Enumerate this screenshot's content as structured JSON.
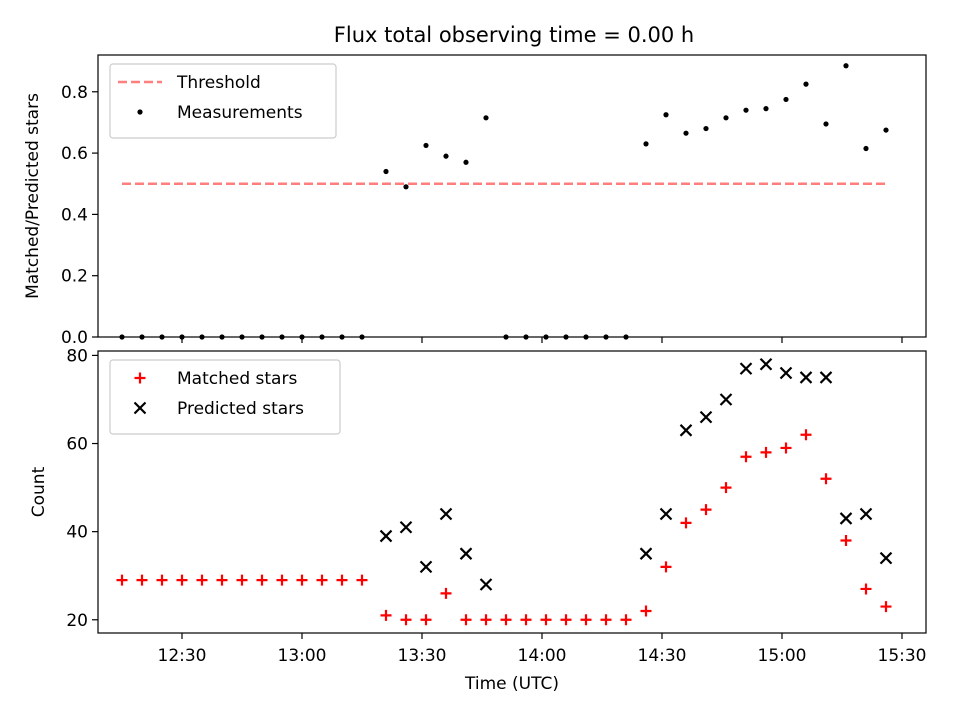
{
  "title": "Flux total observing time = 0.00 h",
  "colors": {
    "threshold": "#ff7f7f",
    "measurements": "#000000",
    "matched": "#ff0000",
    "predicted": "#000000"
  },
  "chart_data": [
    {
      "type": "scatter",
      "title": "Flux total observing time = 0.00 h",
      "xlabel": "",
      "ylabel": "Matched/Predicted stars",
      "xlim": [
        "12:09",
        "15:36"
      ],
      "ylim": [
        0,
        0.92
      ],
      "yticks": [
        0.0,
        0.2,
        0.4,
        0.6,
        0.8
      ],
      "ytick_labels": [
        "0.0",
        "0.2",
        "0.4",
        "0.6",
        "0.8"
      ],
      "legend": "top-left",
      "threshold": {
        "name": "Threshold",
        "value": 0.5,
        "x": [
          "12:15",
          "15:26"
        ]
      },
      "series": [
        {
          "name": "Measurements",
          "x": [
            "12:15",
            "12:20",
            "12:25",
            "12:30",
            "12:35",
            "12:40",
            "12:45",
            "12:50",
            "12:55",
            "13:00",
            "13:05",
            "13:10",
            "13:15",
            "13:21",
            "13:26",
            "13:31",
            "13:36",
            "13:41",
            "13:46",
            "13:51",
            "13:56",
            "14:01",
            "14:06",
            "14:11",
            "14:16",
            "14:21",
            "14:26",
            "14:31",
            "14:36",
            "14:41",
            "14:46",
            "14:51",
            "14:56",
            "15:01",
            "15:06",
            "15:11",
            "15:16",
            "15:21",
            "15:26"
          ],
          "y": [
            0,
            0,
            0,
            0,
            0,
            0,
            0,
            0,
            0,
            0,
            0,
            0,
            0,
            0.54,
            0.49,
            0.625,
            0.59,
            0.57,
            0.715,
            0,
            0,
            0,
            0,
            0,
            0,
            0,
            0.63,
            0.725,
            0.665,
            0.68,
            0.715,
            0.74,
            0.745,
            0.775,
            0.825,
            0.695,
            0.885,
            0.615,
            0.675
          ]
        }
      ]
    },
    {
      "type": "scatter",
      "xlabel": "Time (UTC)",
      "ylabel": "Count",
      "xlim": [
        "12:09",
        "15:36"
      ],
      "ylim": [
        17,
        81
      ],
      "yticks": [
        20,
        40,
        60,
        80
      ],
      "ytick_labels": [
        "20",
        "40",
        "60",
        "80"
      ],
      "xticks": [
        "12:30",
        "13:00",
        "13:30",
        "14:00",
        "14:30",
        "15:00",
        "15:30"
      ],
      "legend": "top-left",
      "series": [
        {
          "name": "Matched stars",
          "x": [
            "12:15",
            "12:20",
            "12:25",
            "12:30",
            "12:35",
            "12:40",
            "12:45",
            "12:50",
            "12:55",
            "13:00",
            "13:05",
            "13:10",
            "13:15",
            "13:21",
            "13:26",
            "13:31",
            "13:36",
            "13:41",
            "13:46",
            "13:51",
            "13:56",
            "14:01",
            "14:06",
            "14:11",
            "14:16",
            "14:21",
            "14:26",
            "14:31",
            "14:36",
            "14:41",
            "14:46",
            "14:51",
            "14:56",
            "15:01",
            "15:06",
            "15:11",
            "15:16",
            "15:21",
            "15:26"
          ],
          "y": [
            29,
            29,
            29,
            29,
            29,
            29,
            29,
            29,
            29,
            29,
            29,
            29,
            29,
            21,
            20,
            20,
            26,
            20,
            20,
            20,
            20,
            20,
            20,
            20,
            20,
            20,
            22,
            32,
            42,
            45,
            50,
            57,
            58,
            59,
            62,
            52,
            38,
            27,
            23
          ]
        },
        {
          "name": "Predicted stars",
          "x": [
            "13:21",
            "13:26",
            "13:31",
            "13:36",
            "13:41",
            "13:46",
            "14:26",
            "14:31",
            "14:36",
            "14:41",
            "14:46",
            "14:51",
            "14:56",
            "15:01",
            "15:06",
            "15:11",
            "15:16",
            "15:21",
            "15:26"
          ],
          "y": [
            39,
            41,
            32,
            44,
            35,
            28,
            35,
            44,
            63,
            66,
            70,
            77,
            78,
            76,
            75,
            75,
            43,
            44,
            34
          ]
        }
      ]
    }
  ]
}
